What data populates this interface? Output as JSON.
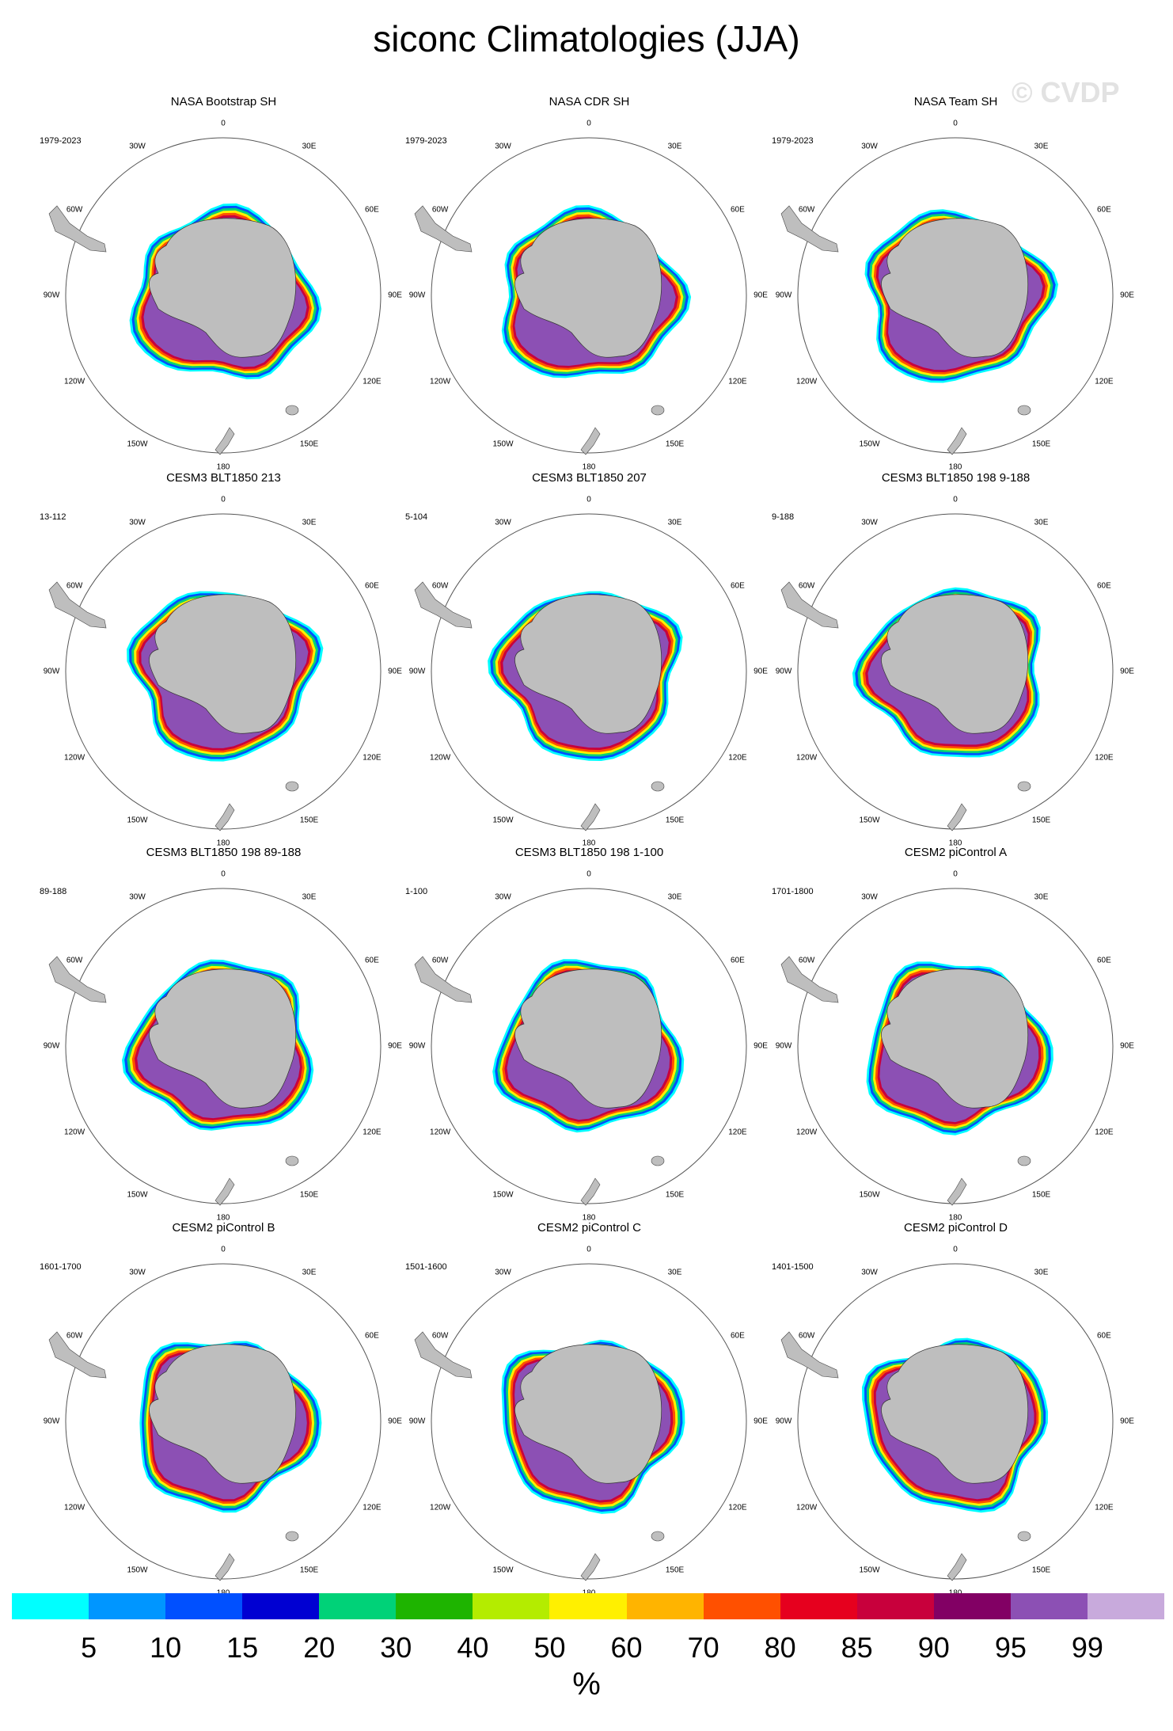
{
  "figure": {
    "title": "siconc Climatologies (JJA)",
    "watermark": "© CVDP",
    "units": "%"
  },
  "longitude_labels": {
    "0": "0",
    "30e": "30E",
    "60e": "60E",
    "90e": "90E",
    "120e": "120E",
    "150e": "150E",
    "180": "180",
    "150w": "150W",
    "120w": "120W",
    "90w": "90W",
    "60w": "60W",
    "30w": "30W"
  },
  "panels": [
    {
      "title": "NASA Bootstrap SH",
      "period": "1979-2023"
    },
    {
      "title": "NASA CDR SH",
      "period": "1979-2023"
    },
    {
      "title": "NASA Team SH",
      "period": "1979-2023"
    },
    {
      "title": "CESM3 BLT1850 213",
      "period": "13-112"
    },
    {
      "title": "CESM3 BLT1850 207",
      "period": "5-104"
    },
    {
      "title": "CESM3 BLT1850 198 9-188",
      "period": "9-188"
    },
    {
      "title": "CESM3 BLT1850 198 89-188",
      "period": "89-188"
    },
    {
      "title": "CESM3 BLT1850 198 1-100",
      "period": "1-100"
    },
    {
      "title": "CESM2 piControl A",
      "period": "1701-1800"
    },
    {
      "title": "CESM2 piControl B",
      "period": "1601-1700"
    },
    {
      "title": "CESM2 piControl C",
      "period": "1501-1600"
    },
    {
      "title": "CESM2 piControl D",
      "period": "1401-1500"
    }
  ],
  "colorbar": {
    "colors": [
      "#00ffff",
      "#0096ff",
      "#0050ff",
      "#0000d2",
      "#00d278",
      "#1eb400",
      "#b4ec00",
      "#fff000",
      "#ffb400",
      "#ff5000",
      "#e6001e",
      "#c8003c",
      "#820064",
      "#8c50b4",
      "#c8aadc"
    ],
    "ticks": [
      "5",
      "10",
      "15",
      "20",
      "30",
      "40",
      "50",
      "60",
      "70",
      "80",
      "85",
      "90",
      "95",
      "99"
    ]
  }
}
